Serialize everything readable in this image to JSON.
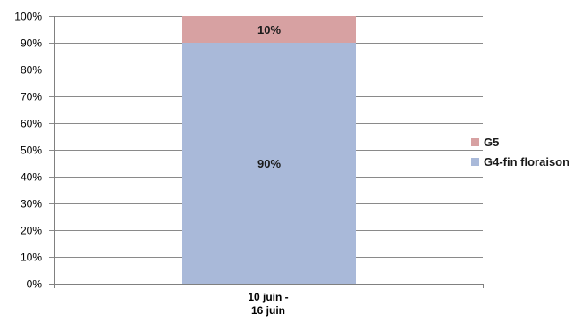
{
  "chart_data": {
    "type": "bar",
    "stacked": true,
    "percent": true,
    "categories": [
      "10 juin -\n16 juin"
    ],
    "series": [
      {
        "name": "G4-fin floraison",
        "values": [
          90
        ],
        "label": "90%",
        "color": "#a9b9d9"
      },
      {
        "name": "G5",
        "values": [
          10
        ],
        "label": "10%",
        "color": "#d7a1a2"
      }
    ],
    "y_ticks": [
      "0%",
      "10%",
      "20%",
      "30%",
      "40%",
      "50%",
      "60%",
      "70%",
      "80%",
      "90%",
      "100%"
    ],
    "ylim": [
      0,
      100
    ],
    "grid": true,
    "legend_position": "right"
  },
  "legend": {
    "items": [
      {
        "label": "G5",
        "color": "#d7a1a2"
      },
      {
        "label": "G4-fin floraison",
        "color": "#a9b9d9"
      }
    ]
  }
}
